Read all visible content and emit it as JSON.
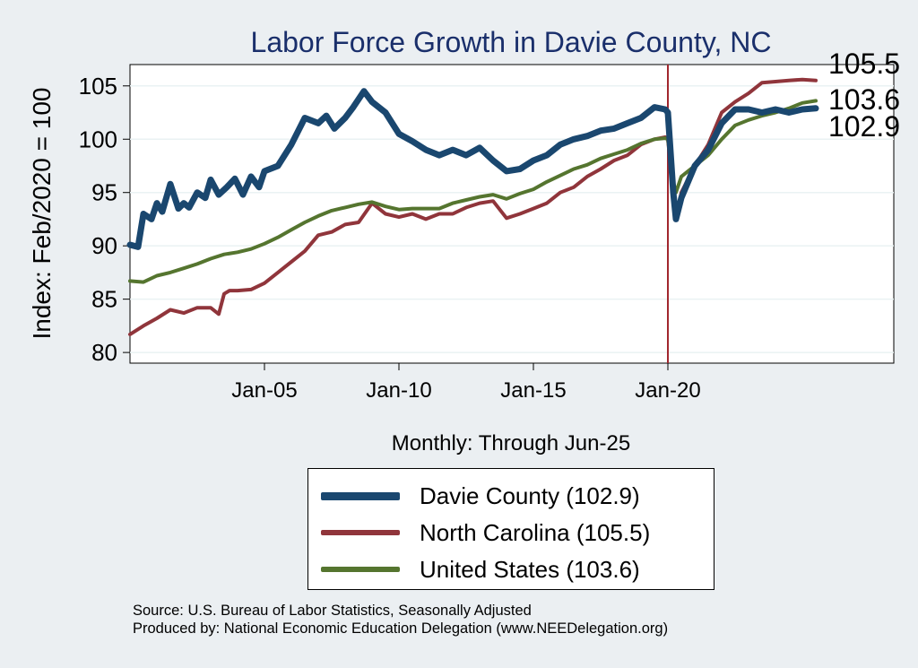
{
  "chart_data": {
    "type": "line",
    "title": "Labor Force Growth in Davie  County, NC",
    "ylabel": "Index: Feb/2020 = 100",
    "xlabel": "Monthly: Through Jun-25",
    "ylim": [
      79,
      107
    ],
    "y_ticks": [
      80,
      85,
      90,
      95,
      100,
      105
    ],
    "xlim": [
      2000.0,
      2028.4
    ],
    "x_ticks": [
      {
        "label": "Jan-05",
        "value": 2005.0
      },
      {
        "label": "Jan-10",
        "value": 2010.0
      },
      {
        "label": "Jan-15",
        "value": 2015.0
      },
      {
        "label": "Jan-20",
        "value": 2020.0
      }
    ],
    "vline": {
      "x": 2020.0,
      "color": "#a1272e"
    },
    "grid": true,
    "end_labels": [
      "105.5",
      "103.6",
      "102.9"
    ],
    "series": [
      {
        "name": "Davie  County (102.9)",
        "color": "#1a476f",
        "width": 7,
        "x": [
          2000.0,
          2000.3,
          2000.5,
          2000.8,
          2001.0,
          2001.2,
          2001.5,
          2001.8,
          2002.0,
          2002.2,
          2002.5,
          2002.8,
          2003.0,
          2003.3,
          2003.6,
          2003.9,
          2004.2,
          2004.5,
          2004.8,
          2005.0,
          2005.5,
          2006.0,
          2006.5,
          2007.0,
          2007.3,
          2007.6,
          2008.0,
          2008.3,
          2008.7,
          2009.0,
          2009.5,
          2010.0,
          2010.5,
          2011.0,
          2011.5,
          2012.0,
          2012.5,
          2013.0,
          2013.5,
          2014.0,
          2014.5,
          2015.0,
          2015.5,
          2016.0,
          2016.5,
          2017.0,
          2017.5,
          2018.0,
          2018.5,
          2019.0,
          2019.5,
          2019.9,
          2020.0,
          2020.2,
          2020.3,
          2020.5,
          2021.0,
          2021.5,
          2022.0,
          2022.5,
          2023.0,
          2023.5,
          2024.0,
          2024.5,
          2025.0,
          2025.5
        ],
        "y": [
          90.1,
          89.9,
          93.0,
          92.5,
          94.0,
          93.2,
          95.8,
          93.5,
          94.0,
          93.6,
          95.0,
          94.5,
          96.2,
          94.8,
          95.5,
          96.3,
          94.8,
          96.5,
          95.5,
          97.0,
          97.5,
          99.5,
          102.0,
          101.5,
          102.2,
          101.0,
          102.0,
          103.0,
          104.5,
          103.5,
          102.5,
          100.5,
          99.8,
          99.0,
          98.5,
          99.0,
          98.5,
          99.2,
          98.0,
          97.0,
          97.2,
          98.0,
          98.5,
          99.5,
          100.0,
          100.3,
          100.8,
          101.0,
          101.5,
          102.0,
          103.0,
          102.8,
          102.5,
          95.0,
          92.5,
          94.5,
          97.5,
          99.0,
          101.5,
          102.8,
          102.8,
          102.5,
          102.8,
          102.5,
          102.8,
          102.9
        ]
      },
      {
        "name": "North Carolina (105.5)",
        "color": "#90353b",
        "width": 4,
        "x": [
          2000.0,
          2000.5,
          2001.0,
          2001.5,
          2002.0,
          2002.5,
          2003.0,
          2003.3,
          2003.5,
          2003.7,
          2004.0,
          2004.5,
          2005.0,
          2005.5,
          2006.0,
          2006.5,
          2007.0,
          2007.5,
          2008.0,
          2008.5,
          2009.0,
          2009.5,
          2010.0,
          2010.5,
          2011.0,
          2011.5,
          2012.0,
          2012.5,
          2013.0,
          2013.5,
          2014.0,
          2014.5,
          2015.0,
          2015.5,
          2016.0,
          2016.5,
          2017.0,
          2017.5,
          2018.0,
          2018.5,
          2019.0,
          2019.5,
          2019.9,
          2020.0,
          2020.2,
          2020.3,
          2020.5,
          2021.0,
          2021.5,
          2022.0,
          2022.5,
          2023.0,
          2023.5,
          2024.0,
          2024.5,
          2025.0,
          2025.5
        ],
        "y": [
          81.7,
          82.5,
          83.2,
          84.0,
          83.7,
          84.2,
          84.2,
          83.6,
          85.5,
          85.8,
          85.8,
          85.9,
          86.5,
          87.5,
          88.5,
          89.5,
          91.0,
          91.3,
          92.0,
          92.2,
          94.0,
          93.0,
          92.7,
          93.0,
          92.5,
          93.0,
          93.0,
          93.6,
          94.0,
          94.2,
          92.6,
          93.0,
          93.5,
          94.0,
          95.0,
          95.5,
          96.5,
          97.2,
          98.0,
          98.5,
          99.5,
          100.0,
          100.2,
          100.0,
          95.0,
          92.5,
          95.0,
          97.5,
          99.5,
          102.5,
          103.5,
          104.3,
          105.3,
          105.4,
          105.5,
          105.6,
          105.5
        ]
      },
      {
        "name": "United States (103.6)",
        "color": "#55752f",
        "width": 4,
        "x": [
          2000.0,
          2000.5,
          2001.0,
          2001.5,
          2002.0,
          2002.5,
          2003.0,
          2003.5,
          2004.0,
          2004.5,
          2005.0,
          2005.5,
          2006.0,
          2006.5,
          2007.0,
          2007.5,
          2008.0,
          2008.5,
          2009.0,
          2009.5,
          2010.0,
          2010.5,
          2011.0,
          2011.5,
          2012.0,
          2012.5,
          2013.0,
          2013.5,
          2014.0,
          2014.5,
          2015.0,
          2015.5,
          2016.0,
          2016.5,
          2017.0,
          2017.5,
          2018.0,
          2018.5,
          2019.0,
          2019.5,
          2019.9,
          2020.0,
          2020.2,
          2020.3,
          2020.5,
          2021.0,
          2021.5,
          2022.0,
          2022.5,
          2023.0,
          2023.5,
          2024.0,
          2024.5,
          2025.0,
          2025.5
        ],
        "y": [
          86.7,
          86.6,
          87.2,
          87.5,
          87.9,
          88.3,
          88.8,
          89.2,
          89.4,
          89.7,
          90.2,
          90.8,
          91.5,
          92.2,
          92.8,
          93.3,
          93.6,
          93.9,
          94.1,
          93.7,
          93.4,
          93.5,
          93.5,
          93.5,
          94.0,
          94.3,
          94.6,
          94.8,
          94.4,
          94.9,
          95.3,
          96.0,
          96.6,
          97.2,
          97.6,
          98.2,
          98.6,
          99.0,
          99.6,
          100.0,
          100.1,
          100.0,
          96.0,
          95.0,
          96.5,
          97.5,
          98.5,
          100.0,
          101.3,
          101.8,
          102.2,
          102.5,
          102.9,
          103.4,
          103.6
        ]
      }
    ]
  },
  "legend": {
    "items": [
      {
        "label": "Davie  County (102.9)",
        "color": "#1a476f"
      },
      {
        "label": "North Carolina (105.5)",
        "color": "#90353b"
      },
      {
        "label": "United States (103.6)",
        "color": "#55752f"
      }
    ]
  },
  "source": {
    "line1": "Source: U.S. Bureau of Labor Statistics, Seasonally Adjusted",
    "line2": "Produced by: National Economic Education Delegation (www.NEEDelegation.org)"
  }
}
